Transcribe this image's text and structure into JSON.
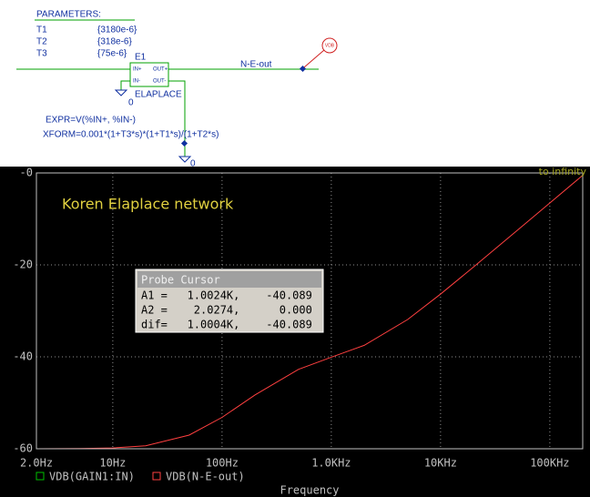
{
  "schematic": {
    "params_title": "PARAMETERS:",
    "params": [
      [
        "T1",
        "{3180e-6}"
      ],
      [
        "T2",
        "{318e-6}"
      ],
      [
        "T3",
        "{75e-6}"
      ]
    ],
    "part_name": "E1",
    "pins": [
      "IN+",
      "OUT+",
      "IN-",
      "OUT-"
    ],
    "part_type": "ELAPLACE",
    "ground_labels": [
      "0",
      "0"
    ],
    "net_label": "N-E-out",
    "probe_label": "VDB",
    "expr": "EXPR=V(%IN+, %IN-)",
    "xform": "XFORM=0.001*(1+T3*s)*(1+T1*s)/(1+T2*s)"
  },
  "probe_cursor": {
    "title": "Probe Cursor",
    "rows": [
      "A1 =   1.0024K,    -40.089",
      "A2 =    2.0274,      0.000",
      "dif=   1.0004K,    -40.089"
    ]
  },
  "chart_data": {
    "type": "line",
    "annotations": [
      "Koren Elaplace network",
      "to infinity"
    ],
    "xlabel": "Frequency",
    "xscale": "log",
    "x": [
      2,
      5,
      10,
      20,
      50,
      100,
      200,
      500,
      1000,
      2000,
      5000,
      10000,
      20000,
      50000,
      100000,
      200000
    ],
    "series": [
      {
        "name": "VDB(N-E-out)",
        "color": "#ff4040",
        "values": [
          -59.99,
          -59.96,
          -59.83,
          -59.36,
          -57.03,
          -53.17,
          -48.3,
          -42.74,
          -40.09,
          -37.5,
          -31.88,
          -26.35,
          -20.47,
          -12.55,
          -6.53,
          -0.51
        ]
      }
    ],
    "legend": [
      {
        "name": "VDB(GAIN1:IN)",
        "color": "#00c000"
      },
      {
        "name": "VDB(N-E-out)",
        "color": "#ff4040"
      }
    ],
    "xlim": [
      2,
      200000
    ],
    "xticks": [
      {
        "value": 2,
        "label": "2.0Hz"
      },
      {
        "value": 10,
        "label": "10Hz"
      },
      {
        "value": 100,
        "label": "100Hz"
      },
      {
        "value": 1000,
        "label": "1.0KHz"
      },
      {
        "value": 10000,
        "label": "10KHz"
      },
      {
        "value": 100000,
        "label": "100KHz"
      }
    ],
    "ylim": [
      -60,
      0
    ],
    "yticks": [
      {
        "value": 0,
        "label": "-0"
      },
      -20,
      -40,
      -60
    ],
    "grid": true
  }
}
